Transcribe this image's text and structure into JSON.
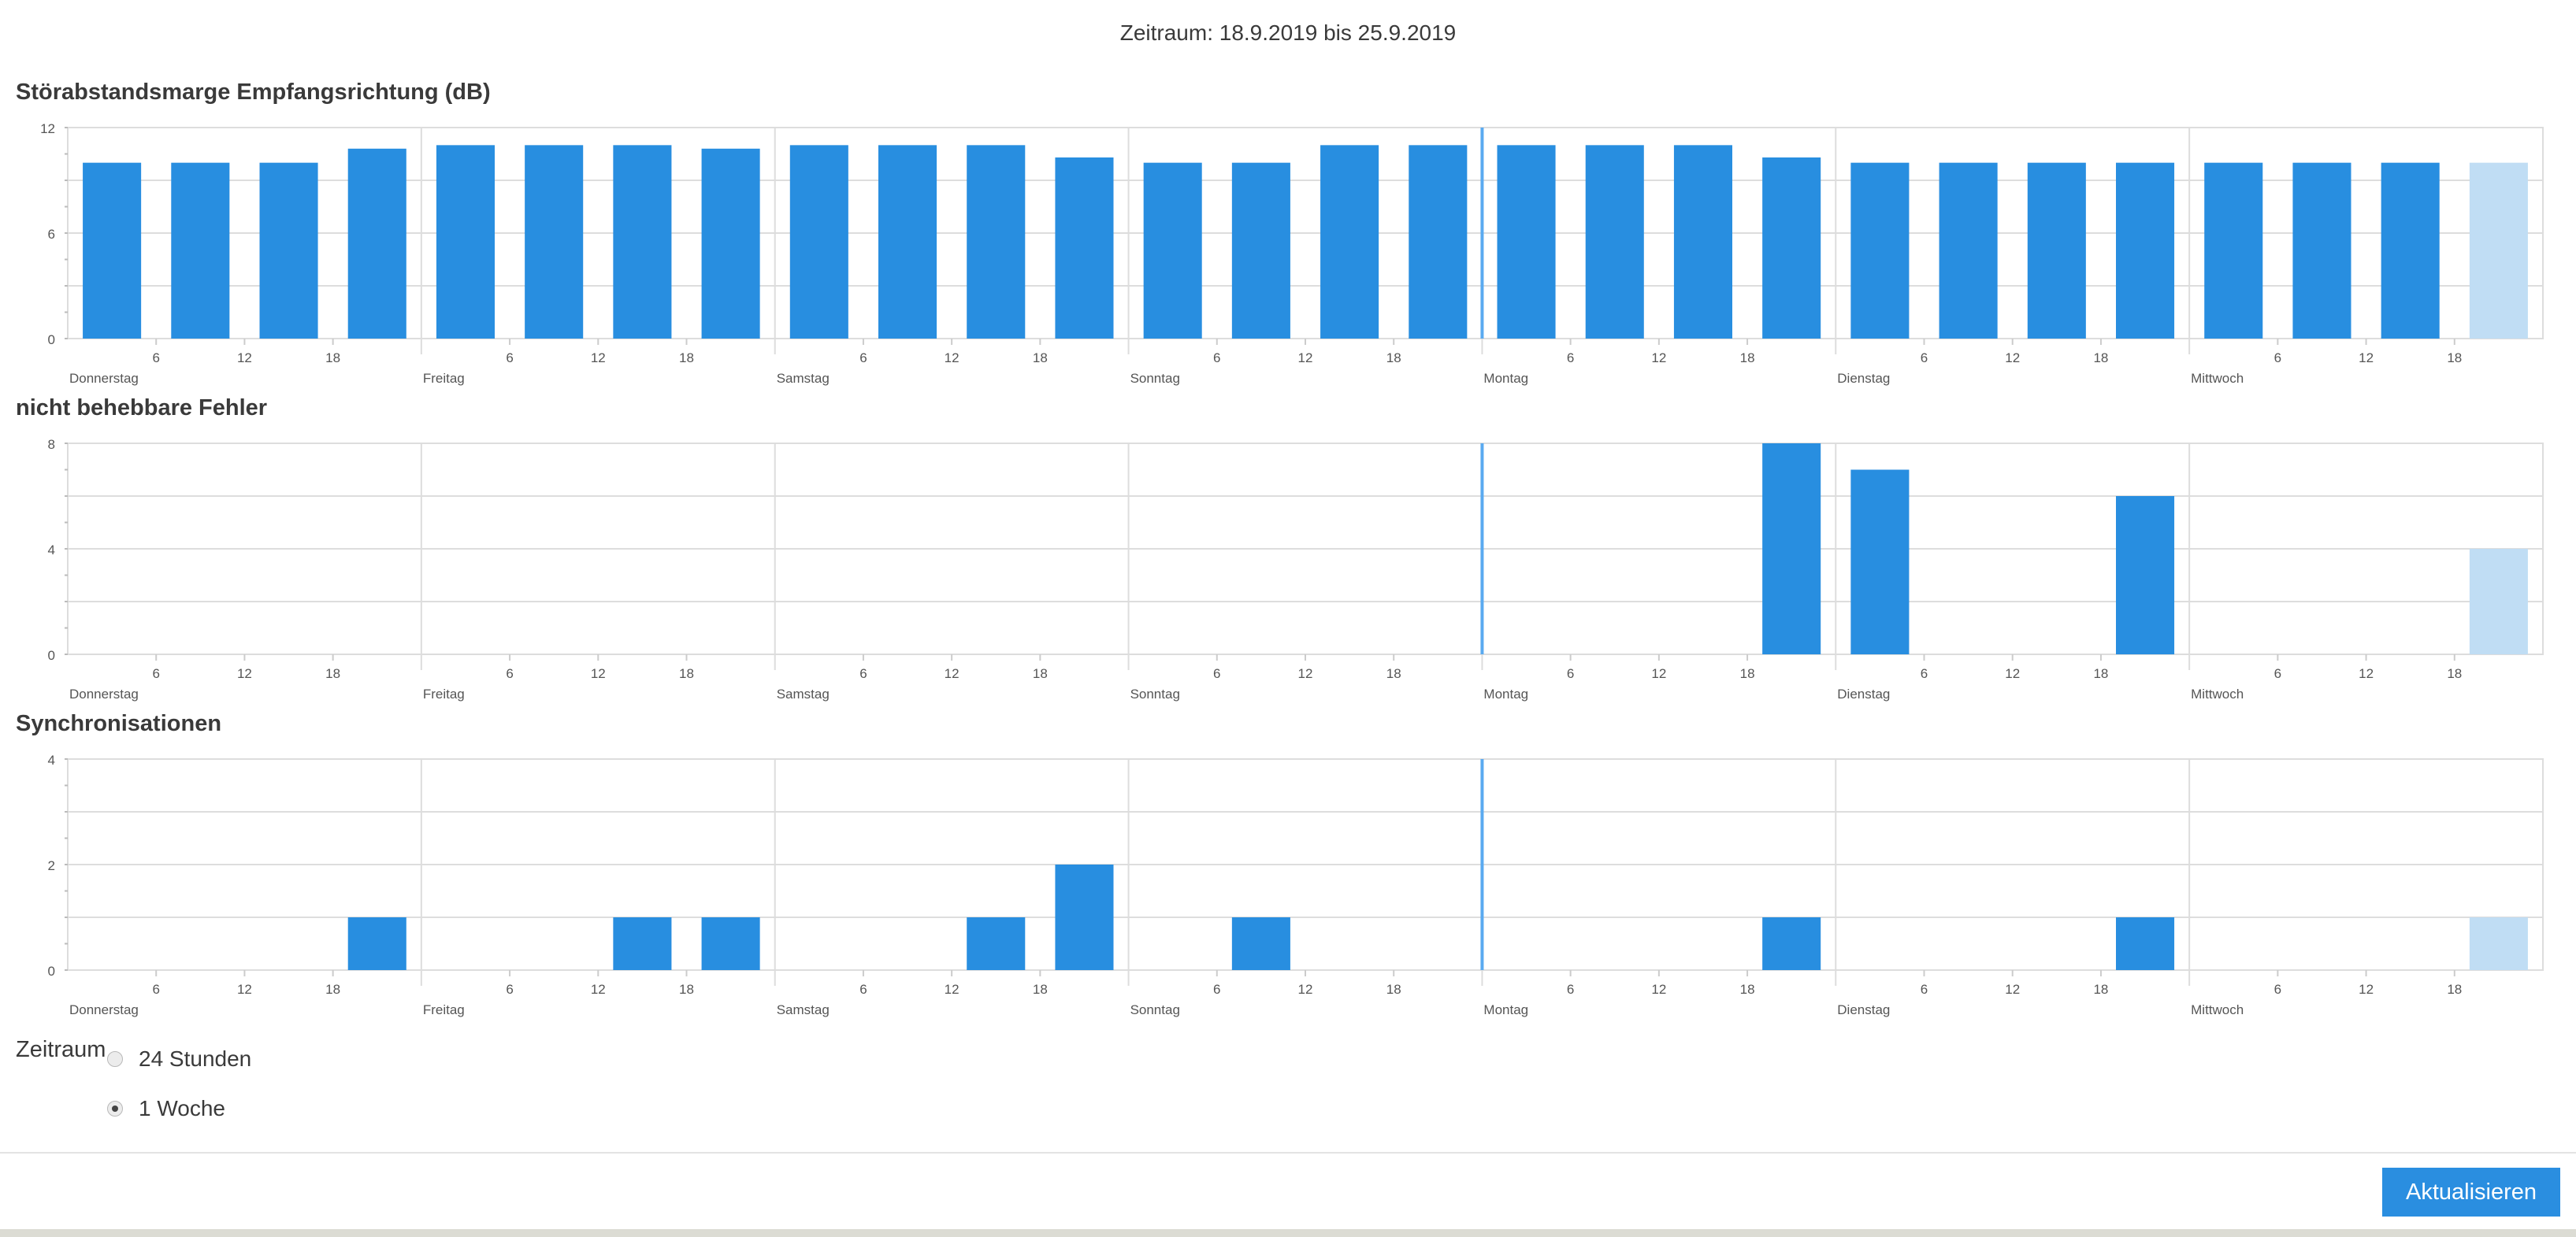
{
  "header": {
    "range_title": "Zeitraum: 18.9.2019 bis 25.9.2019"
  },
  "colors": {
    "bar": "#288ee0",
    "bar_partial": "#c0ddf4",
    "grid": "#dddddd",
    "now_line": "#5aaaf0"
  },
  "chart_data": [
    {
      "type": "bar",
      "title": "Störabstandsmarge Empfangsrichtung (dB)",
      "ylim": [
        0,
        12
      ],
      "yticks": [
        0,
        6,
        12
      ],
      "hour_ticks": [
        "6",
        "12",
        "18"
      ],
      "day_labels": [
        "Donnerstag",
        "Freitag",
        "Samstag",
        "Sonntag",
        "Montag",
        "Dienstag",
        "Mittwoch"
      ],
      "values": [
        10,
        10,
        10,
        10.8,
        11,
        11,
        11,
        10.8,
        11,
        11,
        11,
        10.3,
        10,
        10,
        11,
        11,
        11,
        11,
        11,
        10.3,
        10,
        10,
        10,
        10,
        10,
        10,
        10,
        10
      ],
      "partial_last": true,
      "grid": true
    },
    {
      "type": "bar",
      "title": "nicht behebbare Fehler",
      "ylim": [
        0,
        8
      ],
      "yticks": [
        0,
        4,
        8
      ],
      "hour_ticks": [
        "6",
        "12",
        "18"
      ],
      "day_labels": [
        "Donnerstag",
        "Freitag",
        "Samstag",
        "Sonntag",
        "Montag",
        "Dienstag",
        "Mittwoch"
      ],
      "values": [
        0,
        0,
        0,
        0,
        0,
        0,
        0,
        0,
        0,
        0,
        0,
        0,
        0,
        0,
        0,
        0,
        0,
        0,
        0,
        8,
        7,
        0,
        0,
        6,
        0,
        0,
        0,
        4
      ],
      "partial_last": true,
      "grid": true
    },
    {
      "type": "bar",
      "title": "Synchronisationen",
      "ylim": [
        0,
        4
      ],
      "yticks": [
        0,
        2,
        4
      ],
      "hour_ticks": [
        "6",
        "12",
        "18"
      ],
      "day_labels": [
        "Donnerstag",
        "Freitag",
        "Samstag",
        "Sonntag",
        "Montag",
        "Dienstag",
        "Mittwoch"
      ],
      "values": [
        0,
        0,
        0,
        1,
        0,
        0,
        1,
        1,
        0,
        0,
        1,
        2,
        0,
        1,
        0,
        0,
        0,
        0,
        0,
        1,
        0,
        0,
        0,
        1,
        0,
        0,
        0,
        1
      ],
      "partial_last": true,
      "grid": true
    }
  ],
  "period": {
    "label": "Zeitraum",
    "options": [
      {
        "label": "24 Stunden",
        "checked": false
      },
      {
        "label": "1 Woche",
        "checked": true
      }
    ]
  },
  "actions": {
    "refresh_label": "Aktualisieren"
  }
}
